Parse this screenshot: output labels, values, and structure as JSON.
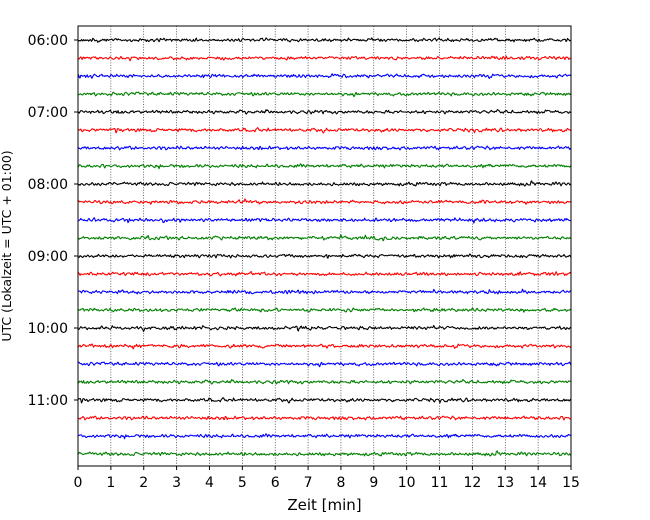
{
  "chart_data": {
    "type": "line",
    "title": "",
    "xlabel": "Zeit  [min]",
    "ylabel": "UTC (Lokalzeit = UTC + 01:00)",
    "xlim": [
      0,
      15
    ],
    "x_ticks": [
      0,
      1,
      2,
      3,
      4,
      5,
      6,
      7,
      8,
      9,
      10,
      11,
      12,
      13,
      14,
      15
    ],
    "x_grid": true,
    "y_tick_labels": [
      "06:00",
      "07:00",
      "08:00",
      "09:00",
      "10:00",
      "11:00"
    ],
    "y_tick_rows": [
      0,
      4,
      8,
      12,
      16,
      20
    ],
    "trace_count": 24,
    "trace_interval_minutes": 15,
    "start_time": "06:00",
    "trace_colors": [
      "#000000",
      "#ff0000",
      "#0000ff",
      "#008000"
    ]
  }
}
